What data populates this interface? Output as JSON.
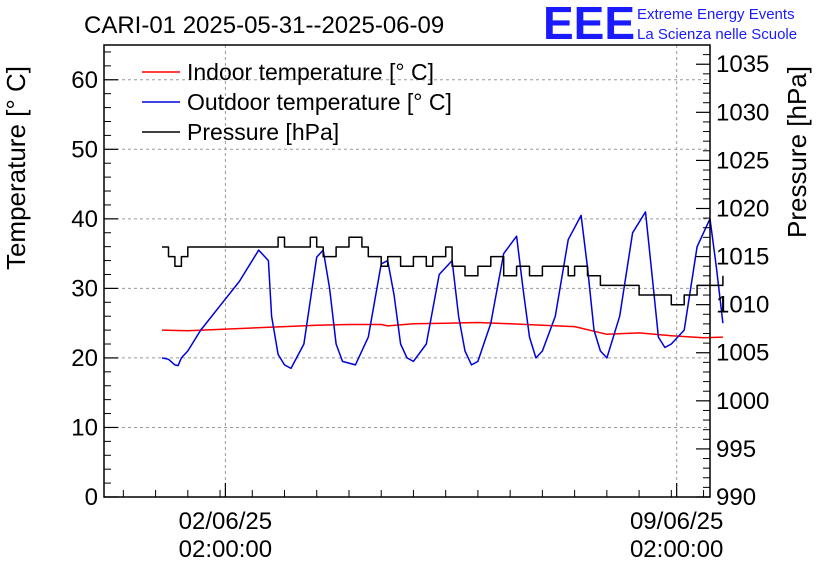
{
  "logo": {
    "letters": "EEE",
    "line1": "Extreme Energy Events",
    "line2": "La Scienza nelle Scuole",
    "color": "#1a1aff"
  },
  "chart_data": {
    "type": "line",
    "title": "CARI-01 2025-05-31--2025-06-09",
    "ylabel": "Temperature [° C]",
    "y2label": "Pressure [hPa]",
    "xlabel": "",
    "x_unit": "days since 2025-05-31 00:00",
    "xlim": [
      0.2,
      9.6
    ],
    "ylim": [
      0,
      65
    ],
    "y2lim": [
      990,
      1037
    ],
    "y_ticks": [
      0,
      10,
      20,
      30,
      40,
      50,
      60
    ],
    "y2_ticks": [
      990,
      995,
      1000,
      1005,
      1010,
      1015,
      1020,
      1025,
      1030,
      1035
    ],
    "x_ticks": [
      {
        "x": 2.083,
        "date": "02/06/25",
        "time": "02:00:00"
      },
      {
        "x": 9.083,
        "date": "09/06/25",
        "time": "02:00:00"
      }
    ],
    "grid": true,
    "legend_position": "top-left",
    "series": [
      {
        "name": "Indoor temperature [° C]",
        "axis": "left",
        "color": "#ff0000",
        "x": [
          1.1,
          1.5,
          2.0,
          2.5,
          3.0,
          3.5,
          4.0,
          4.5,
          4.6,
          5.0,
          5.5,
          6.0,
          6.5,
          7.0,
          7.5,
          8.0,
          8.5,
          9.0,
          9.5,
          9.8
        ],
        "values": [
          24.0,
          23.9,
          24.1,
          24.3,
          24.5,
          24.7,
          24.8,
          24.8,
          24.6,
          24.9,
          25.0,
          25.1,
          24.9,
          24.7,
          24.5,
          23.4,
          23.6,
          23.2,
          22.9,
          23.0
        ]
      },
      {
        "name": "Outdoor temperature [° C]",
        "axis": "left",
        "color": "#0000dd",
        "x": [
          1.1,
          1.2,
          1.3,
          1.35,
          1.4,
          1.5,
          1.7,
          2.0,
          2.3,
          2.6,
          2.75,
          2.8,
          2.9,
          3.0,
          3.1,
          3.3,
          3.5,
          3.6,
          3.7,
          3.8,
          3.9,
          4.1,
          4.3,
          4.5,
          4.6,
          4.7,
          4.8,
          4.9,
          5.0,
          5.2,
          5.4,
          5.6,
          5.7,
          5.8,
          5.9,
          6.0,
          6.2,
          6.4,
          6.6,
          6.7,
          6.8,
          6.9,
          7.0,
          7.2,
          7.4,
          7.6,
          7.7,
          7.8,
          7.9,
          8.0,
          8.2,
          8.4,
          8.6,
          8.7,
          8.8,
          8.9,
          9.0,
          9.2,
          9.4,
          9.6,
          9.7,
          9.8
        ],
        "values": [
          20.0,
          19.8,
          19.0,
          18.9,
          20.0,
          21.0,
          24.0,
          27.5,
          31.0,
          35.5,
          34.0,
          26.0,
          20.5,
          19.0,
          18.5,
          22.0,
          34.5,
          35.5,
          30.0,
          22.0,
          19.5,
          19.0,
          23.0,
          33.5,
          34.0,
          29.0,
          22.0,
          20.0,
          19.5,
          22.0,
          32.0,
          34.0,
          26.0,
          21.0,
          19.0,
          19.5,
          25.0,
          35.0,
          37.5,
          30.0,
          23.0,
          20.0,
          21.0,
          26.0,
          37.0,
          40.5,
          33.0,
          24.0,
          21.0,
          20.0,
          26.0,
          38.0,
          41.0,
          32.0,
          23.0,
          21.5,
          22.0,
          24.0,
          36.0,
          40.0,
          33.0,
          25.0
        ]
      },
      {
        "name": "Pressure [hPa]",
        "axis": "right",
        "color": "#000000",
        "x": [
          1.1,
          1.2,
          1.3,
          1.35,
          1.4,
          1.5,
          2.0,
          2.5,
          2.8,
          2.9,
          3.0,
          3.2,
          3.4,
          3.5,
          3.6,
          3.8,
          4.0,
          4.2,
          4.3,
          4.5,
          4.6,
          4.8,
          5.0,
          5.2,
          5.3,
          5.5,
          5.6,
          5.8,
          6.0,
          6.2,
          6.4,
          6.6,
          6.8,
          7.0,
          7.2,
          7.4,
          7.5,
          7.7,
          7.9,
          8.1,
          8.3,
          8.5,
          8.7,
          8.9,
          9.0,
          9.2,
          9.4,
          9.6,
          9.8
        ],
        "values": [
          1016,
          1015,
          1014,
          1014,
          1015,
          1016,
          1016,
          1016,
          1016,
          1017,
          1016,
          1016,
          1017,
          1016,
          1015,
          1016,
          1017,
          1016,
          1015,
          1014,
          1015,
          1014,
          1015,
          1014,
          1015,
          1016,
          1014,
          1013,
          1014,
          1015,
          1013,
          1014,
          1013,
          1014,
          1014,
          1013,
          1014,
          1013,
          1012,
          1012,
          1012,
          1011,
          1011,
          1011,
          1010,
          1011,
          1012,
          1012,
          1013
        ]
      }
    ]
  }
}
